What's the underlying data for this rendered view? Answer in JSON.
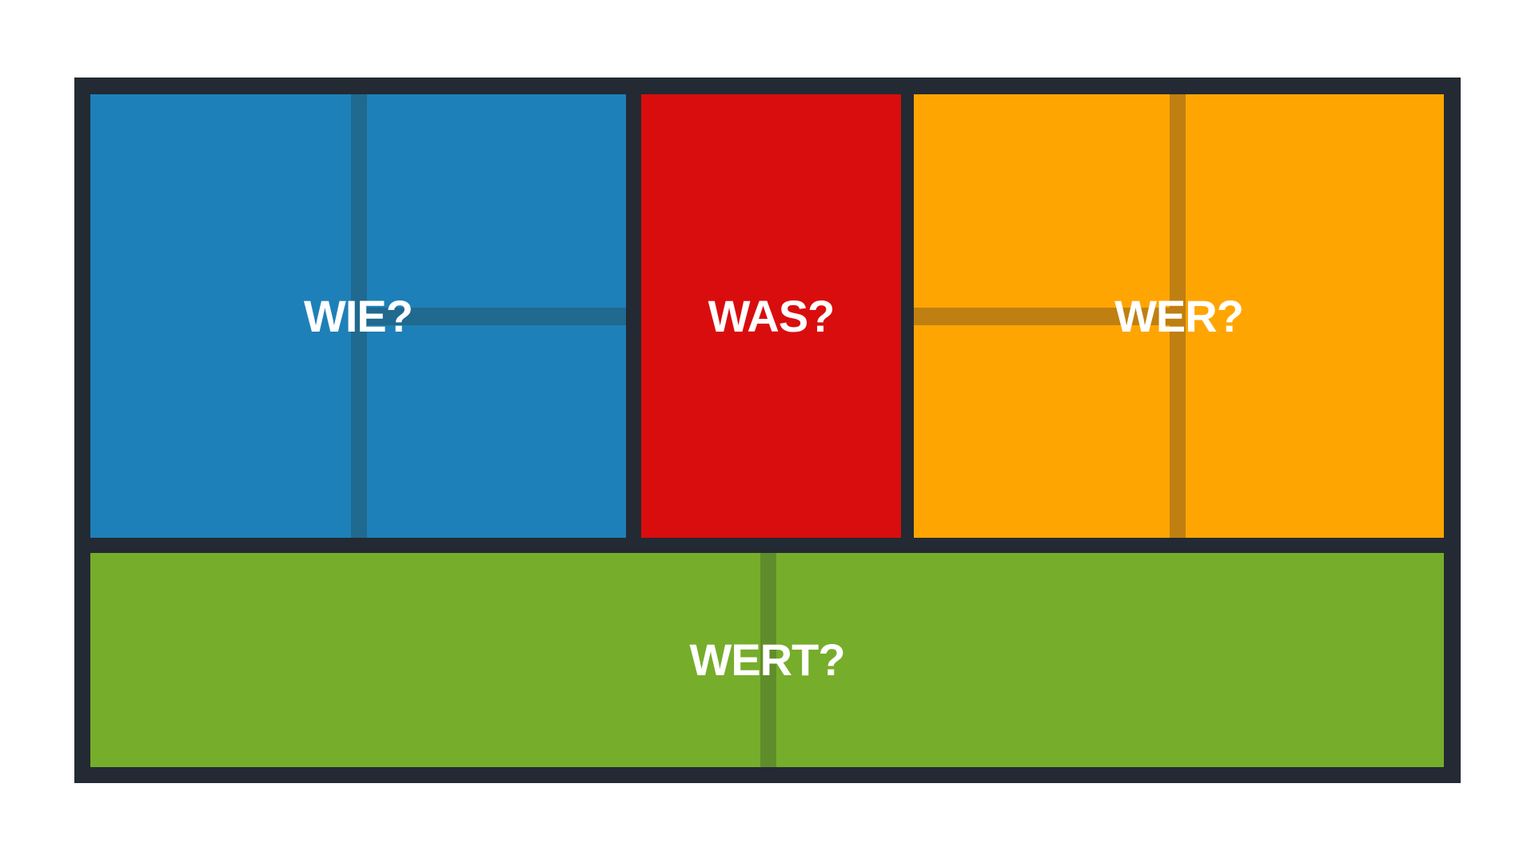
{
  "diagram": {
    "frame_color": "#232A33",
    "page_background": "#FFFFFF",
    "text_color": "#FFFFFF",
    "blocks": {
      "wie": {
        "label": "WIE?",
        "color": "#1E80B8",
        "divider_color": "#20698F"
      },
      "was": {
        "label": "WAS?",
        "color": "#D90D0E"
      },
      "wer": {
        "label": "WER?",
        "color": "#FFA502",
        "divider_color": "#BF8011"
      },
      "wert": {
        "label": "WERT?",
        "color": "#76AD2B",
        "divider_color": "#5F8D2C"
      }
    }
  }
}
